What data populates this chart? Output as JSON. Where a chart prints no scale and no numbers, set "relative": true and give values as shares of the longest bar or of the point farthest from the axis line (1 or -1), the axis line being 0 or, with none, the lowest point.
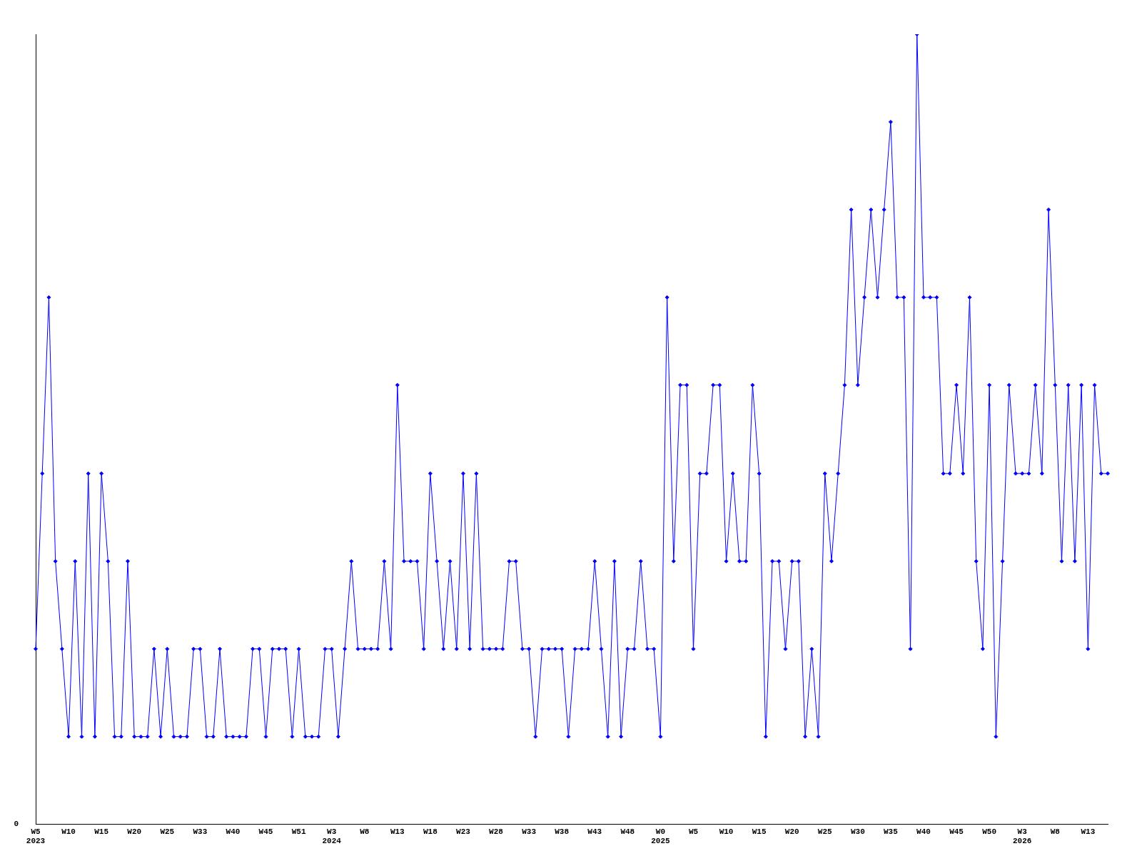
{
  "chart_data": {
    "type": "line",
    "relative": true,
    "grid": false,
    "legend": false,
    "marker": "diamond",
    "line_style": "solid",
    "annotations": [
      "0"
    ],
    "categories": [
      "W5\n2023",
      null,
      null,
      null,
      null,
      "W10",
      null,
      null,
      null,
      null,
      "W15",
      null,
      null,
      null,
      null,
      "W20",
      null,
      null,
      null,
      null,
      "W25",
      null,
      null,
      null,
      null,
      "W33",
      null,
      null,
      null,
      null,
      "W40",
      null,
      null,
      null,
      null,
      "W45",
      null,
      null,
      null,
      null,
      "W51",
      null,
      null,
      null,
      null,
      "W3\n2024",
      null,
      null,
      null,
      null,
      "W8",
      null,
      null,
      null,
      null,
      "W13",
      null,
      null,
      null,
      null,
      "W18",
      null,
      null,
      null,
      null,
      "W23",
      null,
      null,
      null,
      null,
      "W28",
      null,
      null,
      null,
      null,
      "W33",
      null,
      null,
      null,
      null,
      "W38",
      null,
      null,
      null,
      null,
      "W43",
      null,
      null,
      null,
      null,
      "W48",
      null,
      null,
      null,
      null,
      "W0\n2025",
      null,
      null,
      null,
      null,
      "W5",
      null,
      null,
      null,
      null,
      "W10",
      null,
      null,
      null,
      null,
      "W15",
      null,
      null,
      null,
      null,
      "W20",
      null,
      null,
      null,
      null,
      "W25",
      null,
      null,
      null,
      null,
      "W30",
      null,
      null,
      null,
      null,
      "W35",
      null,
      null,
      null,
      null,
      "W40",
      null,
      null,
      null,
      null,
      "W45",
      null,
      null,
      null,
      null,
      "W50",
      null,
      null,
      null,
      null,
      "W3\n2026",
      null,
      null,
      null,
      null,
      "W8",
      null,
      null,
      null,
      null,
      "W13",
      null,
      null,
      null
    ],
    "series": [
      {
        "color": "#0000ff",
        "values": [
          0.222,
          0.444,
          0.667,
          0.333,
          0.222,
          0.111,
          0.333,
          0.111,
          0.444,
          0.111,
          0.444,
          0.333,
          0.111,
          0.111,
          0.333,
          0.111,
          0.111,
          0.111,
          0.222,
          0.111,
          0.222,
          0.111,
          0.111,
          0.111,
          0.222,
          0.222,
          0.111,
          0.111,
          0.222,
          0.111,
          0.111,
          0.111,
          0.111,
          0.222,
          0.222,
          0.111,
          0.222,
          0.222,
          0.222,
          0.111,
          0.222,
          0.111,
          0.111,
          0.111,
          0.222,
          0.222,
          0.111,
          0.222,
          0.333,
          0.222,
          0.222,
          0.222,
          0.222,
          0.333,
          0.222,
          0.556,
          0.333,
          0.333,
          0.333,
          0.222,
          0.444,
          0.333,
          0.222,
          0.333,
          0.222,
          0.444,
          0.222,
          0.444,
          0.222,
          0.222,
          0.222,
          0.222,
          0.333,
          0.333,
          0.222,
          0.222,
          0.111,
          0.222,
          0.222,
          0.222,
          0.222,
          0.111,
          0.222,
          0.222,
          0.222,
          0.333,
          0.222,
          0.111,
          0.333,
          0.111,
          0.222,
          0.222,
          0.333,
          0.222,
          0.222,
          0.111,
          0.667,
          0.333,
          0.556,
          0.556,
          0.222,
          0.444,
          0.444,
          0.556,
          0.556,
          0.333,
          0.444,
          0.333,
          0.333,
          0.556,
          0.444,
          0.111,
          0.333,
          0.333,
          0.222,
          0.333,
          0.333,
          0.111,
          0.222,
          0.111,
          0.444,
          0.333,
          0.444,
          0.556,
          0.778,
          0.556,
          0.667,
          0.778,
          0.667,
          0.778,
          0.889,
          0.667,
          0.667,
          0.222,
          1,
          0.667,
          0.667,
          0.667,
          0.444,
          0.444,
          0.556,
          0.444,
          0.667,
          0.333,
          0.222,
          0.556,
          0.111,
          0.333,
          0.556,
          0.444,
          0.444,
          0.444,
          0.556,
          0.444,
          0.778,
          0.556,
          0.333,
          0.556,
          0.333,
          0.556,
          0.222,
          0.556,
          0.444,
          0.444
        ]
      }
    ]
  }
}
